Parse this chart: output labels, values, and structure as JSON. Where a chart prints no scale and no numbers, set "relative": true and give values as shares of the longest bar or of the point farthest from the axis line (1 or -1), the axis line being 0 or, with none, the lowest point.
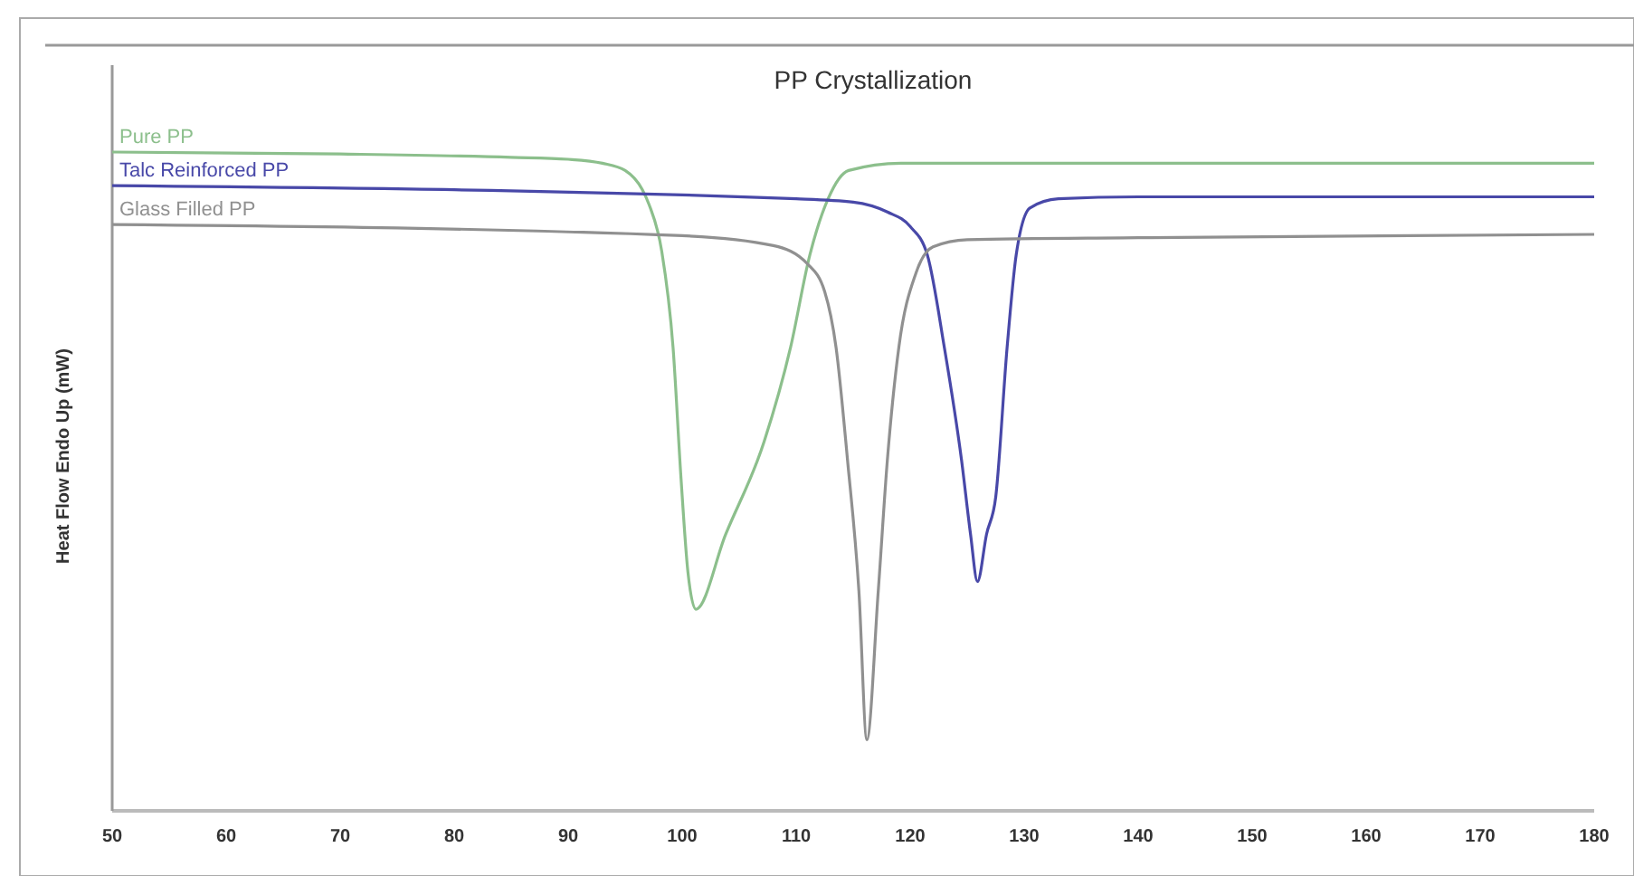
{
  "chart_data": {
    "type": "line",
    "title": "PP Crystallization",
    "ylabel": "Heat Flow Endo Up (mW)",
    "relative": true,
    "xlim": [
      50,
      180
    ],
    "xticks": [
      50,
      60,
      70,
      80,
      90,
      100,
      110,
      120,
      130,
      140,
      150,
      160,
      170,
      180
    ],
    "legend": "top left",
    "grid": false,
    "marker": "none",
    "line_style": "solid",
    "series": [
      {
        "name": "Pure PP",
        "color": "#8cbf8c",
        "x": [
          50,
          70,
          85,
          90,
          93,
          95,
          96.5,
          97.1,
          98.2,
          99.2,
          99.9,
          100.5,
          101.2,
          103.8,
          107.2,
          109.5,
          111.2,
          112.8,
          114.6,
          119.2,
          140,
          180
        ],
        "values": [
          1.0,
          0.997,
          0.992,
          0.989,
          0.983,
          0.972,
          0.943,
          0.92,
          0.85,
          0.703,
          0.504,
          0.363,
          0.306,
          0.419,
          0.561,
          0.703,
          0.844,
          0.929,
          0.972,
          0.983,
          0.983,
          0.983
        ]
      },
      {
        "name": "Talc Reinforced PP",
        "color": "#4848a8",
        "x": [
          50,
          110,
          115,
          118,
          120,
          121.5,
          123,
          124.5,
          125.3,
          125.9,
          126.7,
          127.5,
          128.5,
          129.3,
          130.5,
          133,
          140,
          180
        ],
        "values": [
          0.949,
          0.929,
          0.924,
          0.909,
          0.887,
          0.844,
          0.703,
          0.533,
          0.419,
          0.348,
          0.42,
          0.476,
          0.703,
          0.844,
          0.915,
          0.929,
          0.932,
          0.932
        ]
      },
      {
        "name": "Glass Filled PP",
        "color": "#909090",
        "x": [
          50,
          100,
          108,
          111,
          112.5,
          113.5,
          114.5,
          115.5,
          116.2,
          117.2,
          118,
          119,
          120.5,
          122,
          125,
          140,
          180
        ],
        "values": [
          0.89,
          0.873,
          0.858,
          0.83,
          0.788,
          0.703,
          0.533,
          0.334,
          0.108,
          0.334,
          0.533,
          0.703,
          0.816,
          0.856,
          0.867,
          0.87,
          0.875
        ]
      }
    ]
  }
}
